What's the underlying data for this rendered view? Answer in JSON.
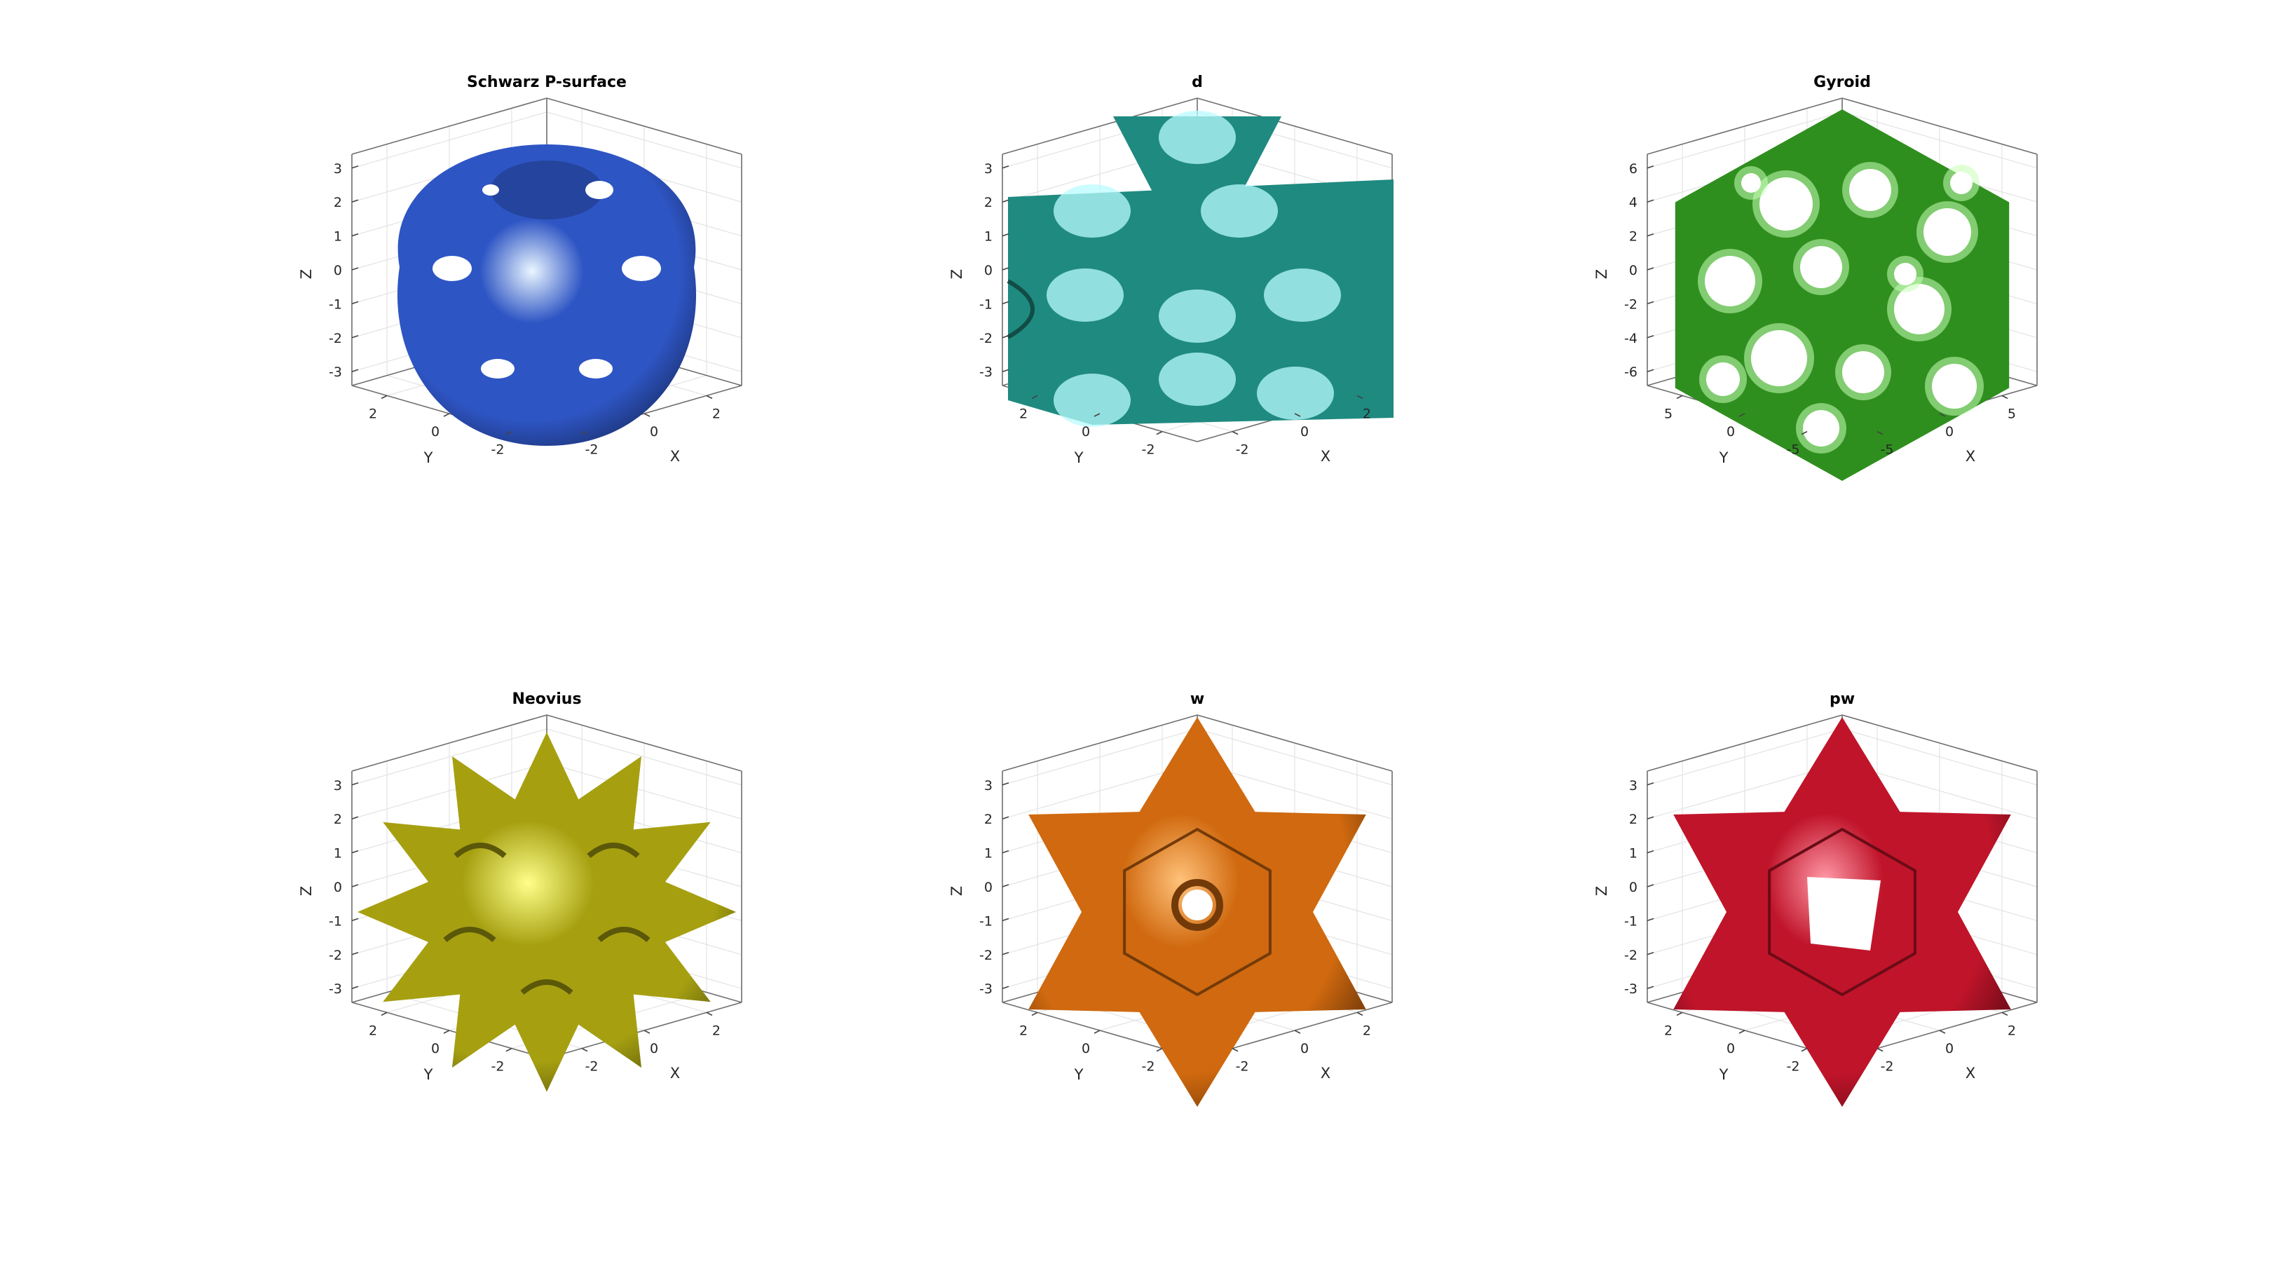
{
  "chart_data": [
    {
      "type": "3d-isosurface",
      "title": "Schwarz P-surface",
      "xlabel": "X",
      "ylabel": "Y",
      "zlabel": "Z",
      "xticks": [
        "-2",
        "0",
        "2"
      ],
      "yticks": [
        "2",
        "0",
        "-2"
      ],
      "zticks": [
        "3",
        "2",
        "1",
        "0",
        "-1",
        "-2",
        "-3"
      ],
      "xlim": [
        -3.14,
        3.14
      ],
      "ylim": [
        -3.14,
        3.14
      ],
      "zlim": [
        -3.14,
        3.14
      ],
      "color": "#2e55c4",
      "highlight": "#eaf6ff",
      "shape": "p"
    },
    {
      "type": "3d-isosurface",
      "title": "d",
      "xlabel": "X",
      "ylabel": "Y",
      "zlabel": "Z",
      "xticks": [
        "-2",
        "0",
        "2"
      ],
      "yticks": [
        "2",
        "0",
        "-2"
      ],
      "zticks": [
        "3",
        "2",
        "1",
        "0",
        "-1",
        "-2",
        "-3"
      ],
      "xlim": [
        -3.14,
        3.14
      ],
      "ylim": [
        -3.14,
        3.14
      ],
      "zlim": [
        -3.14,
        3.14
      ],
      "color": "#1f8a80",
      "highlight": "#b9fbff",
      "shape": "d"
    },
    {
      "type": "3d-isosurface",
      "title": "Gyroid",
      "xlabel": "X",
      "ylabel": "Y",
      "zlabel": "Z",
      "xticks": [
        "-5",
        "0",
        "5"
      ],
      "yticks": [
        "5",
        "0",
        "-5"
      ],
      "zticks": [
        "6",
        "4",
        "2",
        "0",
        "-2",
        "-4",
        "-6"
      ],
      "xlim": [
        -6.28,
        6.28
      ],
      "ylim": [
        -6.28,
        6.28
      ],
      "zlim": [
        -6.28,
        6.28
      ],
      "color": "#2f8f1e",
      "highlight": "#c6ffb6",
      "shape": "gyroid"
    },
    {
      "type": "3d-isosurface",
      "title": "Neovius",
      "xlabel": "X",
      "ylabel": "Y",
      "zlabel": "Z",
      "xticks": [
        "-2",
        "0",
        "2"
      ],
      "yticks": [
        "2",
        "0",
        "-2"
      ],
      "zticks": [
        "3",
        "2",
        "1",
        "0",
        "-1",
        "-2",
        "-3"
      ],
      "xlim": [
        -3.14,
        3.14
      ],
      "ylim": [
        -3.14,
        3.14
      ],
      "zlim": [
        -3.14,
        3.14
      ],
      "color": "#a6a011",
      "highlight": "#ffff8a",
      "shape": "neovius"
    },
    {
      "type": "3d-isosurface",
      "title": "w",
      "xlabel": "X",
      "ylabel": "Y",
      "zlabel": "Z",
      "xticks": [
        "-2",
        "0",
        "2"
      ],
      "yticks": [
        "2",
        "0",
        "-2"
      ],
      "zticks": [
        "3",
        "2",
        "1",
        "0",
        "-1",
        "-2",
        "-3"
      ],
      "xlim": [
        -3.14,
        3.14
      ],
      "ylim": [
        -3.14,
        3.14
      ],
      "zlim": [
        -3.14,
        3.14
      ],
      "color": "#d0690f",
      "highlight": "#ffc27a",
      "shape": "w"
    },
    {
      "type": "3d-isosurface",
      "title": "pw",
      "xlabel": "X",
      "ylabel": "Y",
      "zlabel": "Z",
      "xticks": [
        "-2",
        "0",
        "2"
      ],
      "yticks": [
        "2",
        "0",
        "-2"
      ],
      "zticks": [
        "3",
        "2",
        "1",
        "0",
        "-1",
        "-2",
        "-3"
      ],
      "xlim": [
        -3.14,
        3.14
      ],
      "ylim": [
        -3.14,
        3.14
      ],
      "zlim": [
        -3.14,
        3.14
      ],
      "color": "#c0142a",
      "highlight": "#ff9aa8",
      "shape": "pw"
    }
  ]
}
